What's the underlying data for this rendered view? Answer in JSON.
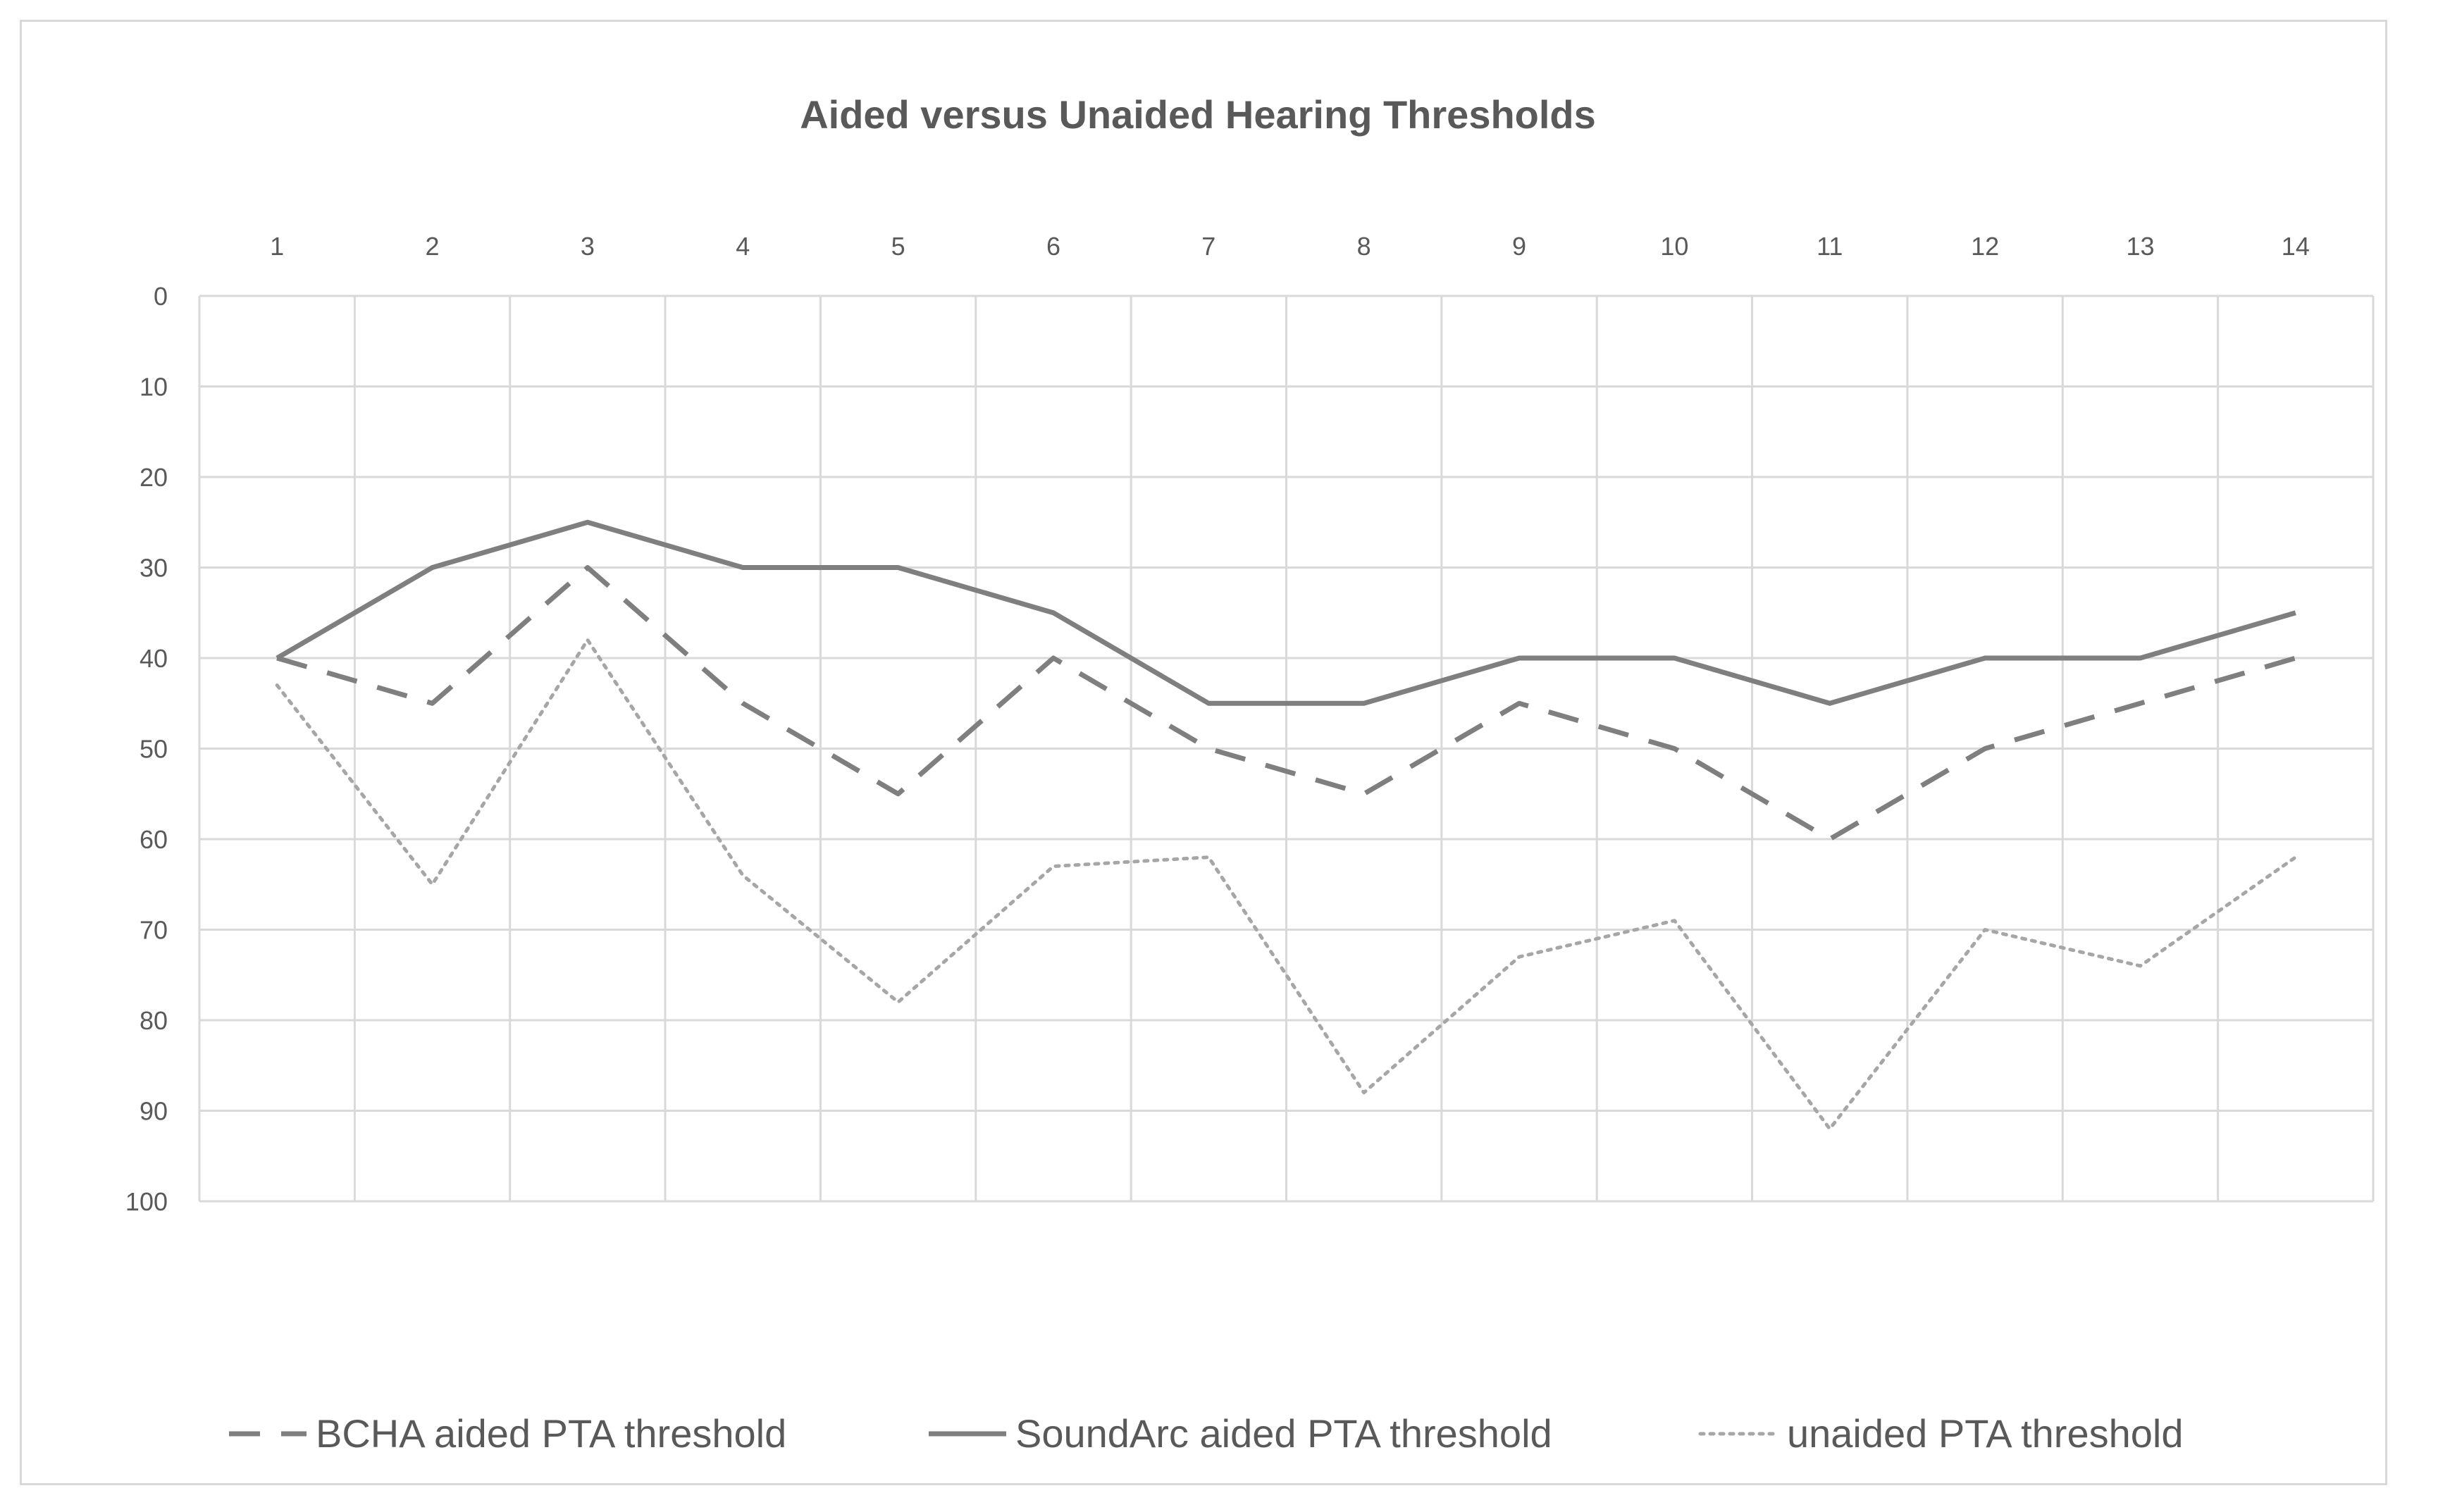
{
  "chart_data": {
    "type": "line",
    "title": "Aided versus Unaided Hearing Thresholds",
    "xlabel": "",
    "ylabel": "",
    "categories": [
      "1",
      "2",
      "3",
      "4",
      "5",
      "6",
      "7",
      "8",
      "9",
      "10",
      "11",
      "12",
      "13",
      "14"
    ],
    "x_axis_position": "top",
    "y_reversed": true,
    "ylim": [
      0,
      100
    ],
    "yticks": [
      "0",
      "10",
      "20",
      "30",
      "40",
      "50",
      "60",
      "70",
      "80",
      "90",
      "100"
    ],
    "grid": true,
    "legend_position": "bottom",
    "series": [
      {
        "name": "BCHA aided PTA threshold",
        "style": "dashed",
        "color": "#7f7f7f",
        "values": [
          40,
          45,
          30,
          45,
          55,
          40,
          50,
          55,
          45,
          50,
          60,
          50,
          45,
          40
        ]
      },
      {
        "name": "SoundArc aided PTA threshold",
        "style": "solid",
        "color": "#7f7f7f",
        "values": [
          40,
          30,
          25,
          30,
          30,
          35,
          45,
          45,
          40,
          40,
          45,
          40,
          40,
          35
        ]
      },
      {
        "name": "unaided PTA threshold",
        "style": "dotted",
        "color": "#a6a6a6",
        "values": [
          43,
          65,
          38,
          64,
          78,
          63,
          62,
          88,
          73,
          69,
          92,
          70,
          74,
          62
        ]
      }
    ]
  },
  "colors": {
    "gridline": "#d9d9d9",
    "text": "#595959",
    "frame": "#d9d9d9"
  }
}
